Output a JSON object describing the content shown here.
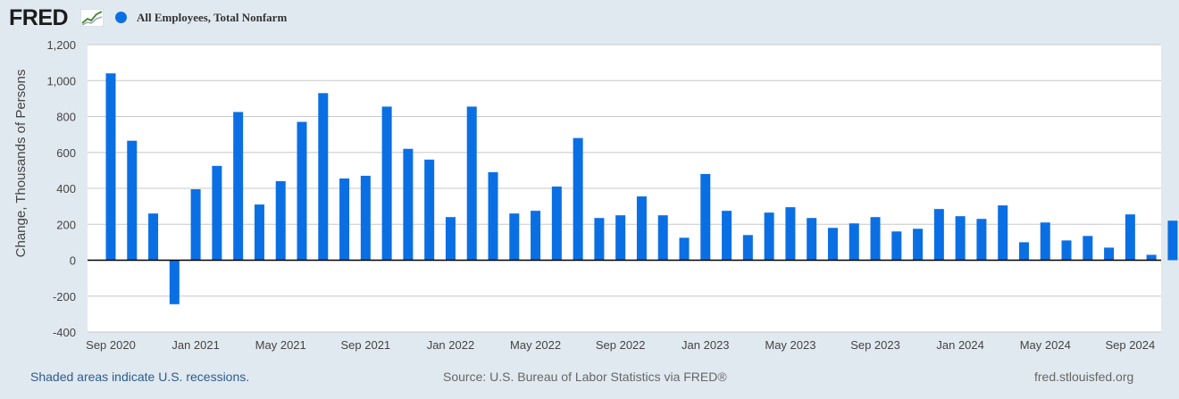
{
  "header": {
    "logo_text": "FRED",
    "logo_icon": "line-chart-icon",
    "series_label": "All Employees, Total Nonfarm"
  },
  "colors": {
    "bar": "#0b6fe4",
    "plot_bg": "#ffffff",
    "page_bg": "#e1e9f0",
    "grid": "#c8c8c8",
    "zero_line": "#000000"
  },
  "footer": {
    "recessions_note": "Shaded areas indicate U.S. recessions.",
    "source": "Source: U.S. Bureau of Labor Statistics via FRED®",
    "site": "fred.stlouisfed.org"
  },
  "chart_data": {
    "type": "bar",
    "title": "All Employees, Total Nonfarm",
    "ylabel": "Change, Thousands of Persons",
    "xlabel": "",
    "ylim": [
      -400,
      1200
    ],
    "yticks": [
      -400,
      -200,
      0,
      200,
      400,
      600,
      800,
      1000,
      1200
    ],
    "ytick_labels": [
      "-400",
      "-200",
      "0",
      "200",
      "400",
      "600",
      "800",
      "1,000",
      "1,200"
    ],
    "grid": true,
    "x_start": "Sep 2020",
    "xtick_labels": [
      {
        "index": 0,
        "label": "Sep 2020"
      },
      {
        "index": 4,
        "label": "Jan 2021"
      },
      {
        "index": 8,
        "label": "May 2021"
      },
      {
        "index": 12,
        "label": "Sep 2021"
      },
      {
        "index": 16,
        "label": "Jan 2022"
      },
      {
        "index": 20,
        "label": "May 2022"
      },
      {
        "index": 24,
        "label": "Sep 2022"
      },
      {
        "index": 28,
        "label": "Jan 2023"
      },
      {
        "index": 32,
        "label": "May 2023"
      },
      {
        "index": 36,
        "label": "Sep 2023"
      },
      {
        "index": 40,
        "label": "Jan 2024"
      },
      {
        "index": 44,
        "label": "May 2024"
      },
      {
        "index": 48,
        "label": "Sep 2024"
      }
    ],
    "series": [
      {
        "name": "All Employees, Total Nonfarm",
        "values": [
          1040,
          665,
          260,
          -245,
          395,
          525,
          825,
          310,
          440,
          770,
          930,
          455,
          470,
          855,
          620,
          560,
          240,
          855,
          490,
          260,
          275,
          410,
          680,
          235,
          250,
          355,
          250,
          125,
          480,
          275,
          140,
          265,
          295,
          235,
          180,
          205,
          240,
          160,
          175,
          285,
          245,
          230,
          305,
          100,
          210,
          110,
          135,
          70,
          255,
          30,
          220
        ]
      }
    ]
  }
}
